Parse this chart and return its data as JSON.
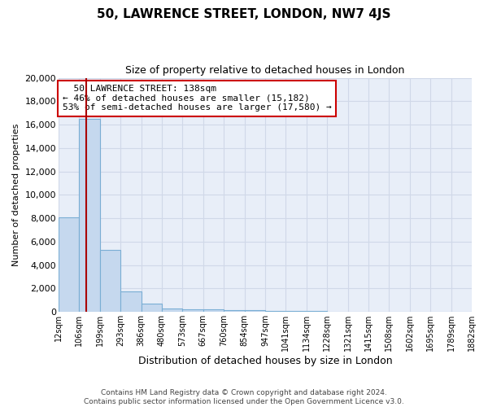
{
  "title": "50, LAWRENCE STREET, LONDON, NW7 4JS",
  "subtitle": "Size of property relative to detached houses in London",
  "xlabel": "Distribution of detached houses by size in London",
  "ylabel": "Number of detached properties",
  "bin_labels": [
    "12sqm",
    "106sqm",
    "199sqm",
    "293sqm",
    "386sqm",
    "480sqm",
    "573sqm",
    "667sqm",
    "760sqm",
    "854sqm",
    "947sqm",
    "1041sqm",
    "1134sqm",
    "1228sqm",
    "1321sqm",
    "1415sqm",
    "1508sqm",
    "1602sqm",
    "1695sqm",
    "1789sqm",
    "1882sqm"
  ],
  "bar_values": [
    8100,
    16500,
    5300,
    1750,
    700,
    320,
    230,
    200,
    170,
    120,
    80,
    60,
    50,
    40,
    30,
    25,
    20,
    15,
    12,
    10
  ],
  "bar_color": "#c5d8ee",
  "bar_edge_color": "#7aaed4",
  "bg_color": "#e8eef8",
  "grid_color": "#d0d8e8",
  "pct_smaller": 46,
  "count_smaller": 15182,
  "pct_larger_semi": 53,
  "count_larger_semi": 17580,
  "red_line_color": "#aa0000",
  "annotation_box_edge": "#cc0000",
  "ylim": [
    0,
    20000
  ],
  "yticks": [
    0,
    2000,
    4000,
    6000,
    8000,
    10000,
    12000,
    14000,
    16000,
    18000,
    20000
  ],
  "footnote_line1": "Contains HM Land Registry data © Crown copyright and database right 2024.",
  "footnote_line2": "Contains public sector information licensed under the Open Government Licence v3.0."
}
